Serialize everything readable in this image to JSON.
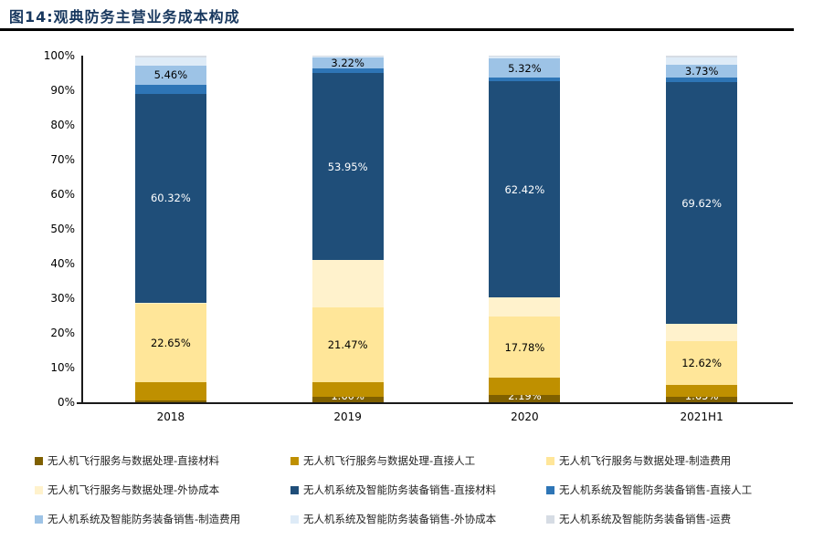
{
  "header": {
    "title": "图14:观典防务主营业务成本构成"
  },
  "chart_data": {
    "type": "bar",
    "stacked": true,
    "percent_stacked": true,
    "grid": false,
    "legend_position": "bottom",
    "categories": [
      "2018",
      "2019",
      "2020",
      "2021H1"
    ],
    "ylim": [
      0,
      100
    ],
    "yticks": [
      "0%",
      "10%",
      "20%",
      "30%",
      "40%",
      "50%",
      "60%",
      "70%",
      "80%",
      "90%",
      "100%"
    ],
    "series": [
      {
        "name": "无人机飞行服务与数据处理-直接材料",
        "color": "#7F6000",
        "values": [
          0.62,
          1.6,
          2.19,
          1.65
        ],
        "labels": [
          "0.62%",
          "1.60%",
          "2.19%",
          "1.65%"
        ],
        "label_color": "#FFFFFF",
        "label_pos": "bottom"
      },
      {
        "name": "无人机飞行服务与数据处理-直接人工",
        "color": "#BF9000",
        "values": [
          5.2,
          4.2,
          4.8,
          3.4
        ]
      },
      {
        "name": "无人机飞行服务与数据处理-制造费用",
        "color": "#FFE699",
        "values": [
          22.65,
          21.47,
          17.78,
          12.62
        ],
        "labels": [
          "22.65%",
          "21.47%",
          "17.78%",
          "12.62%"
        ],
        "label_color": "#000000"
      },
      {
        "name": "无人机飞行服务与数据处理-外协成本",
        "color": "#FFF2CC",
        "values": [
          0.2,
          13.7,
          5.4,
          5.0
        ]
      },
      {
        "name": "无人机系统及智能防务装备销售-直接材料",
        "color": "#1F4E79",
        "values": [
          60.32,
          53.95,
          62.42,
          69.62
        ],
        "labels": [
          "60.32%",
          "53.95%",
          "62.42%",
          "69.62%"
        ],
        "label_color": "#FFFFFF"
      },
      {
        "name": "无人机系统及智能防务装备销售-直接人工",
        "color": "#2E75B6",
        "values": [
          2.7,
          1.4,
          1.2,
          1.3
        ]
      },
      {
        "name": "无人机系统及智能防务装备销售-制造费用",
        "color": "#9DC3E6",
        "values": [
          5.46,
          3.22,
          5.32,
          3.73
        ],
        "labels": [
          "5.46%",
          "3.22%",
          "5.32%",
          "3.73%"
        ],
        "label_color": "#000000"
      },
      {
        "name": "无人机系统及智能防务装备销售-外协成本",
        "color": "#DEEBF7",
        "values": [
          2.3,
          0.3,
          0.7,
          2.2
        ]
      },
      {
        "name": "无人机系统及智能防务装备销售-运费",
        "color": "#D6DCE4",
        "values": [
          0.55,
          0.16,
          0.19,
          0.48
        ]
      }
    ]
  }
}
